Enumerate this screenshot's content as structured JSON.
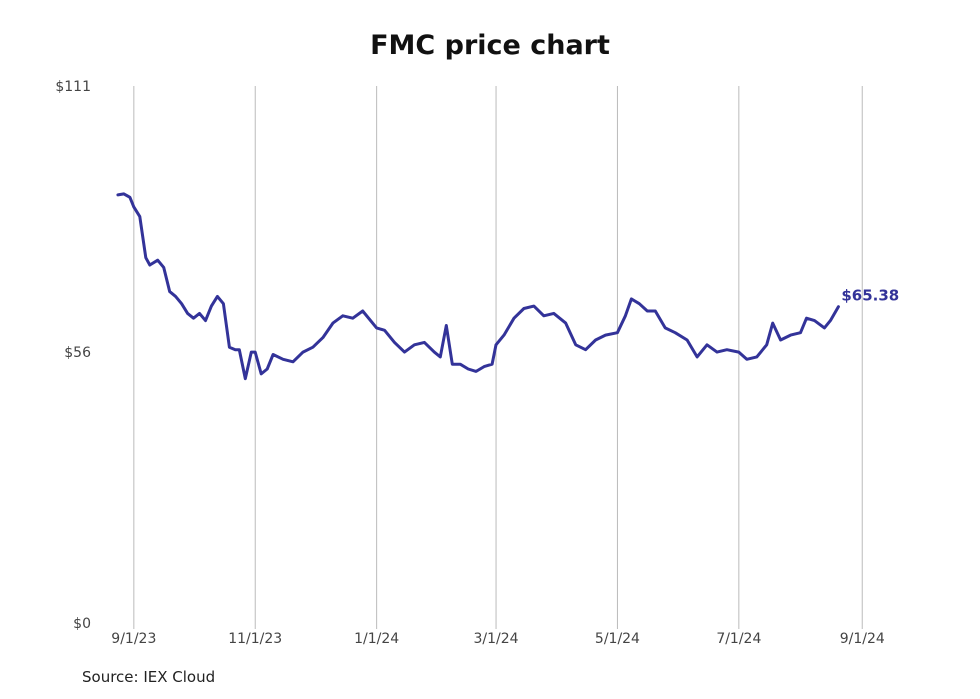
{
  "title": "FMC price chart",
  "source": "Source: IEX Cloud",
  "chart_data": {
    "type": "line",
    "title": "FMC price chart",
    "xlabel": "",
    "ylabel": "",
    "ylim": [
      0,
      111
    ],
    "y_ticks": [
      {
        "value": 0,
        "label": "$0"
      },
      {
        "value": 56,
        "label": "$56"
      },
      {
        "value": 111,
        "label": "$111"
      }
    ],
    "x_ticks": [
      {
        "date": "2023-09-01",
        "label": "9/1/23"
      },
      {
        "date": "2023-11-01",
        "label": "11/1/23"
      },
      {
        "date": "2024-01-01",
        "label": "1/1/24"
      },
      {
        "date": "2024-03-01",
        "label": "3/1/24"
      },
      {
        "date": "2024-05-01",
        "label": "5/1/24"
      },
      {
        "date": "2024-07-01",
        "label": "7/1/24"
      },
      {
        "date": "2024-09-01",
        "label": "9/1/24"
      }
    ],
    "xlim": [
      "2023-08-15",
      "2024-09-25"
    ],
    "grid": "vertical",
    "line_color": "#333399",
    "last_value_label": "$65.38",
    "series": [
      {
        "x": [
          "2023-08-24",
          "2023-08-27",
          "2023-08-30",
          "2023-09-01",
          "2023-09-04",
          "2023-09-07",
          "2023-09-09",
          "2023-09-13",
          "2023-09-16",
          "2023-09-19",
          "2023-09-22",
          "2023-09-25",
          "2023-09-28",
          "2023-10-01",
          "2023-10-04",
          "2023-10-07",
          "2023-10-10",
          "2023-10-13",
          "2023-10-16",
          "2023-10-19",
          "2023-10-22",
          "2023-10-24",
          "2023-10-27",
          "2023-10-30",
          "2023-11-01",
          "2023-11-04",
          "2023-11-07",
          "2023-11-10",
          "2023-11-15",
          "2023-11-20",
          "2023-11-25",
          "2023-11-30",
          "2023-12-05",
          "2023-12-10",
          "2023-12-15",
          "2023-12-20",
          "2023-12-25",
          "2024-01-01",
          "2024-01-05",
          "2024-01-10",
          "2024-01-15",
          "2024-01-20",
          "2024-01-25",
          "2024-01-30",
          "2024-02-02",
          "2024-02-05",
          "2024-02-08",
          "2024-02-12",
          "2024-02-16",
          "2024-02-20",
          "2024-02-24",
          "2024-02-28",
          "2024-03-01",
          "2024-03-05",
          "2024-03-10",
          "2024-03-15",
          "2024-03-20",
          "2024-03-25",
          "2024-03-30",
          "2024-04-05",
          "2024-04-10",
          "2024-04-15",
          "2024-04-20",
          "2024-04-25",
          "2024-05-01",
          "2024-05-05",
          "2024-05-08",
          "2024-05-12",
          "2024-05-16",
          "2024-05-20",
          "2024-05-25",
          "2024-05-30",
          "2024-06-05",
          "2024-06-10",
          "2024-06-15",
          "2024-06-20",
          "2024-06-25",
          "2024-07-01",
          "2024-07-05",
          "2024-07-10",
          "2024-07-15",
          "2024-07-18",
          "2024-07-22",
          "2024-07-27",
          "2024-08-01",
          "2024-08-04",
          "2024-08-08",
          "2024-08-13",
          "2024-08-16",
          "2024-08-20"
        ],
        "y": [
          88.5,
          88.7,
          88.0,
          86.0,
          84.0,
          75.5,
          74.0,
          75.0,
          73.5,
          68.5,
          67.5,
          66.0,
          64.0,
          63.0,
          64.0,
          62.5,
          65.5,
          67.5,
          66.0,
          57.0,
          56.5,
          56.5,
          50.5,
          56.0,
          56.0,
          51.5,
          52.5,
          55.5,
          54.5,
          54.0,
          56.0,
          57.0,
          59.0,
          62.0,
          63.5,
          63.0,
          64.5,
          61.0,
          60.5,
          58.0,
          56.0,
          57.5,
          58.0,
          56.0,
          55.0,
          61.5,
          53.5,
          53.5,
          52.5,
          52.0,
          53.0,
          53.5,
          57.5,
          59.5,
          63.0,
          65.0,
          65.5,
          63.5,
          64.0,
          62.0,
          57.5,
          56.5,
          58.5,
          59.5,
          60.0,
          63.5,
          67.0,
          66.0,
          64.5,
          64.5,
          61.0,
          60.0,
          58.5,
          55.0,
          57.5,
          56.0,
          56.5,
          56.0,
          54.5,
          55.0,
          57.5,
          62.0,
          58.5,
          59.5,
          60.0,
          63.0,
          62.5,
          61.0,
          62.5,
          65.38
        ]
      }
    ]
  }
}
